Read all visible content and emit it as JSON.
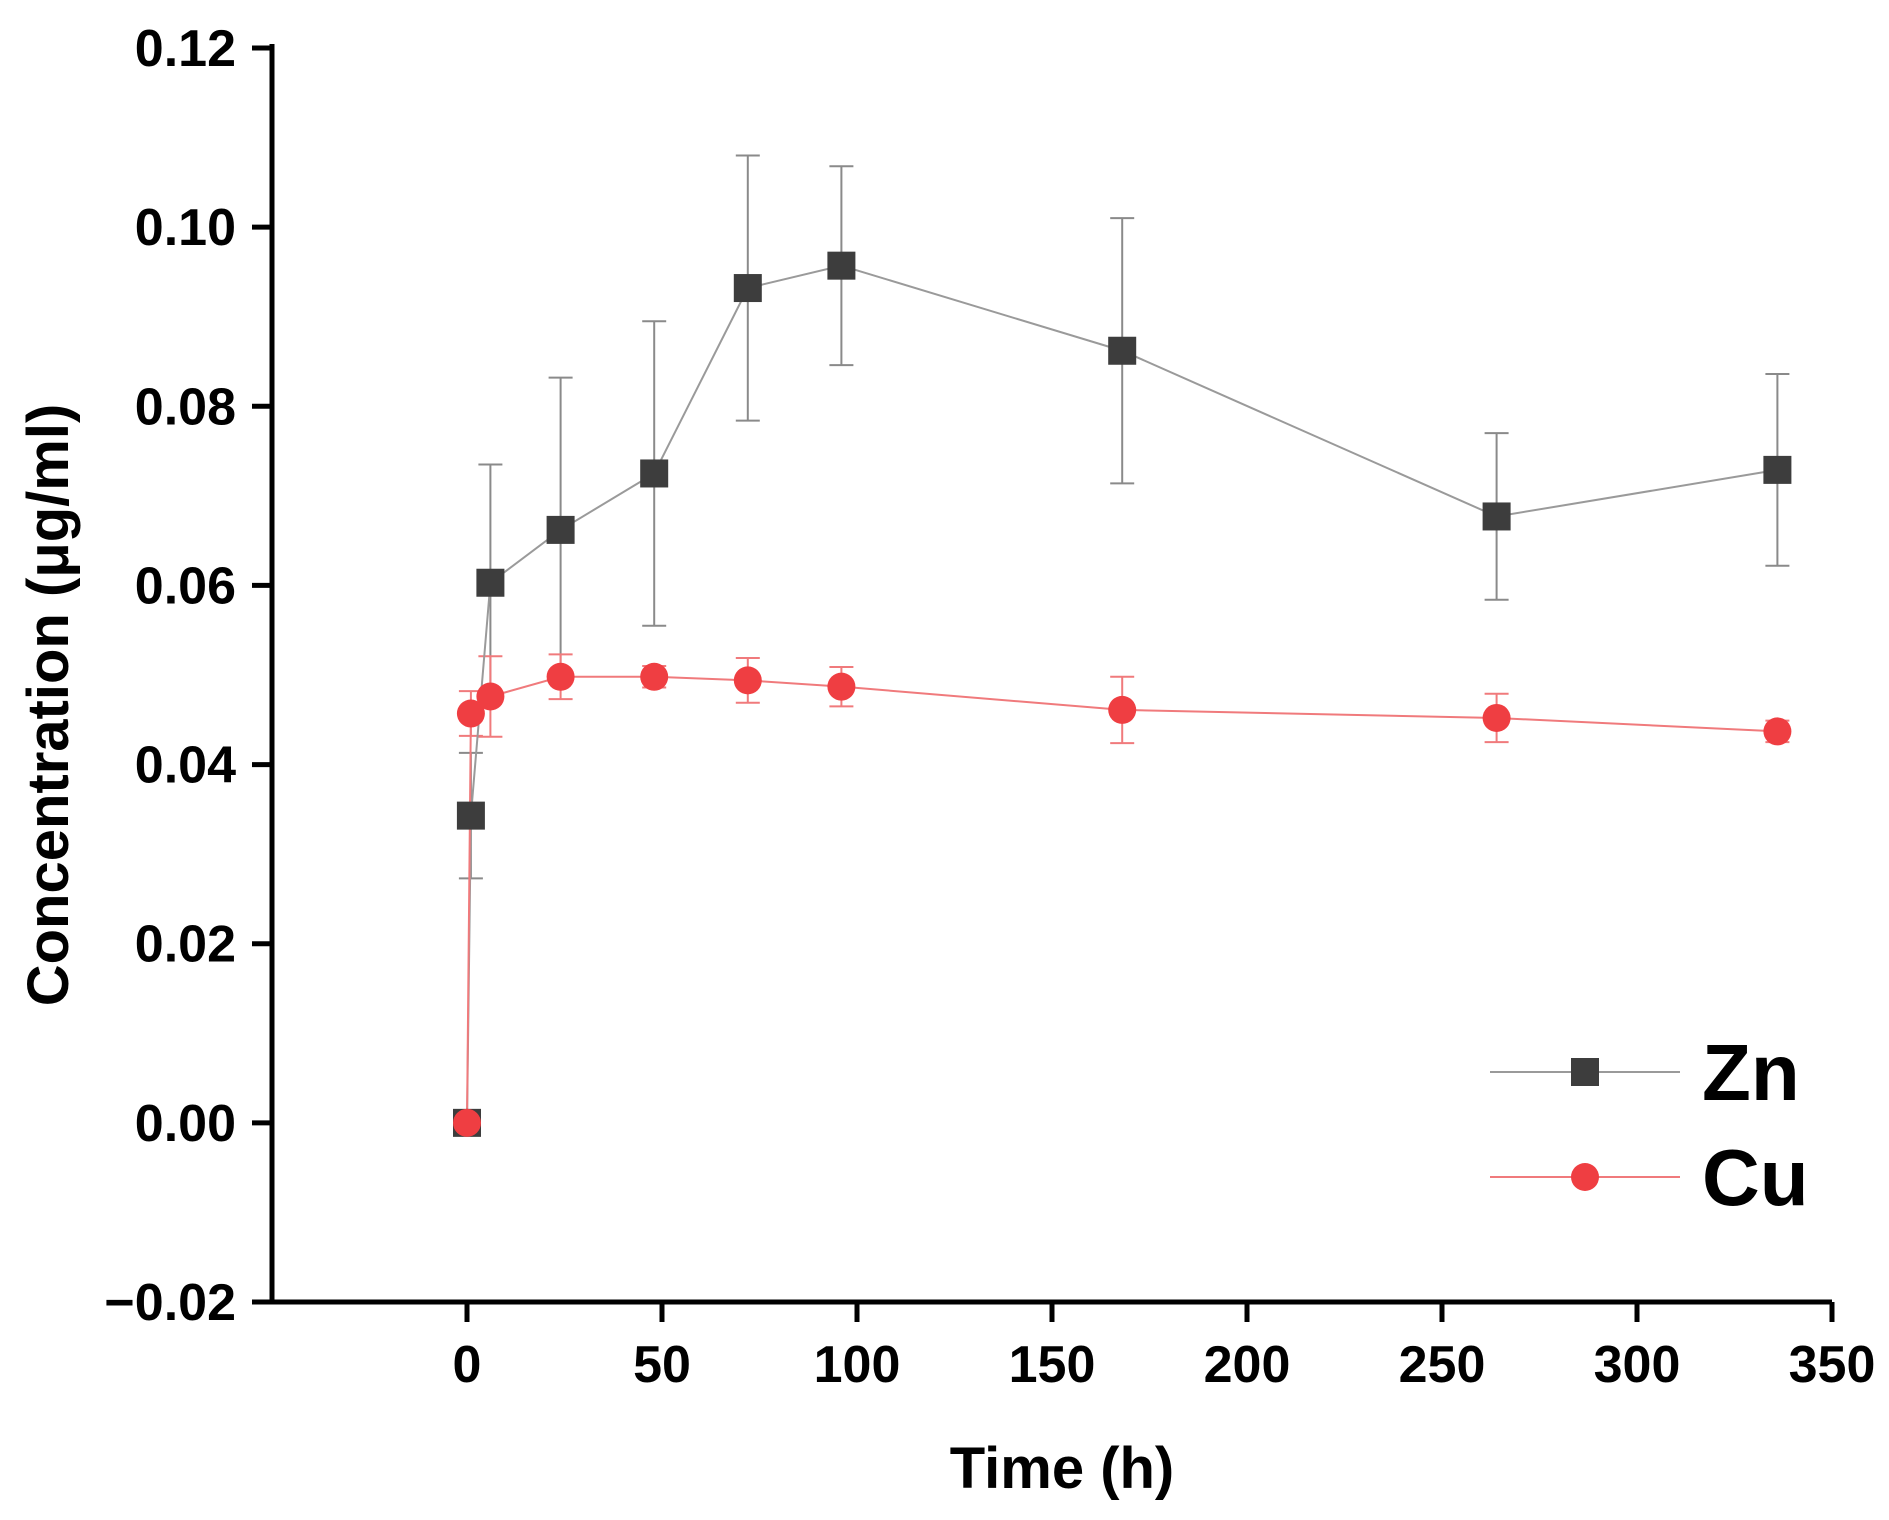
{
  "chart_data": {
    "type": "line",
    "title": "",
    "xlabel": "Time (h)",
    "ylabel": "Concentration (μg/ml)",
    "xlim": [
      -50,
      350
    ],
    "ylim": [
      -0.02,
      0.12
    ],
    "x_ticks": [
      0,
      50,
      100,
      150,
      200,
      250,
      300,
      350
    ],
    "y_ticks": [
      -0.02,
      0.0,
      0.02,
      0.04,
      0.06,
      0.08,
      0.1,
      0.12
    ],
    "x_tick_labels": [
      "0",
      "50",
      "100",
      "150",
      "200",
      "250",
      "300",
      "350"
    ],
    "y_tick_labels": [
      "−0.02",
      "0.00",
      "0.02",
      "0.04",
      "0.06",
      "0.08",
      "0.10",
      "0.12"
    ],
    "grid": false,
    "legend": "bottom-right",
    "series": [
      {
        "name": "Zn",
        "marker": "square",
        "color": "#3d3d3d",
        "line_color": "#9a9a9a",
        "points": [
          {
            "x": 0,
            "y": 0.0,
            "err": 0.0
          },
          {
            "x": 1,
            "y": 0.0343,
            "err": 0.007
          },
          {
            "x": 6,
            "y": 0.0603,
            "err": 0.0132
          },
          {
            "x": 24,
            "y": 0.0662,
            "err": 0.017
          },
          {
            "x": 48,
            "y": 0.0725,
            "err": 0.017
          },
          {
            "x": 72,
            "y": 0.0932,
            "err": 0.0148
          },
          {
            "x": 96,
            "y": 0.0957,
            "err": 0.0111
          },
          {
            "x": 168,
            "y": 0.0862,
            "err": 0.0148
          },
          {
            "x": 264,
            "y": 0.0677,
            "err": 0.0093
          },
          {
            "x": 336,
            "y": 0.0729,
            "err": 0.0107
          }
        ]
      },
      {
        "name": "Cu",
        "marker": "circle",
        "color": "#ef3e42",
        "line_color": "#f07a7c",
        "points": [
          {
            "x": 0,
            "y": 0.0,
            "err": 0.0
          },
          {
            "x": 1,
            "y": 0.0457,
            "err": 0.0025
          },
          {
            "x": 6,
            "y": 0.0476,
            "err": 0.0045
          },
          {
            "x": 24,
            "y": 0.0498,
            "err": 0.0025
          },
          {
            "x": 48,
            "y": 0.0498,
            "err": 0.0012
          },
          {
            "x": 72,
            "y": 0.0494,
            "err": 0.0025
          },
          {
            "x": 96,
            "y": 0.0487,
            "err": 0.0022
          },
          {
            "x": 168,
            "y": 0.0461,
            "err": 0.0037
          },
          {
            "x": 264,
            "y": 0.0452,
            "err": 0.0027
          },
          {
            "x": 336,
            "y": 0.0437,
            "err": 0.0012
          }
        ]
      }
    ]
  }
}
